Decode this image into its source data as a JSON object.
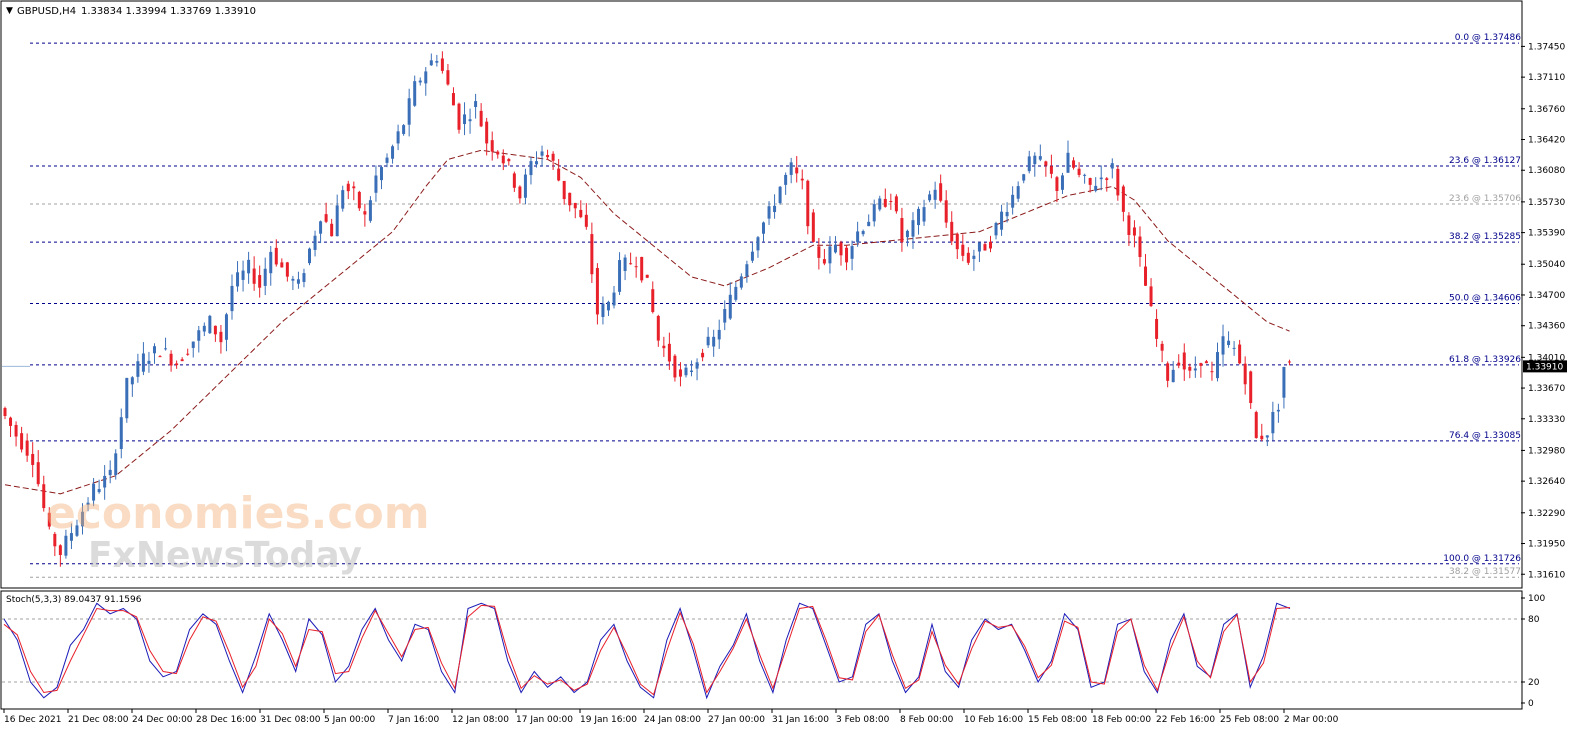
{
  "header": {
    "symbol_label": "GBPUSD,H4",
    "ohlc_text": "1.33834 1.33994 1.33769 1.33910",
    "arrow": "▼"
  },
  "watermark": {
    "line1": "economies.com",
    "line2": "FxNewsToday"
  },
  "colors": {
    "bull": "#3a6fb8",
    "bear": "#e8202a",
    "ma": "#8b1a1a",
    "fib": "#00008b",
    "fib_faint": "#a0a0a0",
    "stoch_main": "#1c1cb8",
    "stoch_signal": "#e8202a",
    "price_tag_bg": "#000000",
    "price_tag_fg": "#ffffff"
  },
  "chart_data": [
    {
      "type": "candlestick",
      "symbol": "GBPUSD",
      "timeframe": "H4",
      "price_axis_ticks": [
        "1.37450",
        "1.37110",
        "1.36760",
        "1.36420",
        "1.36080",
        "1.35730",
        "1.35390",
        "1.35040",
        "1.34700",
        "1.34360",
        "1.34010",
        "1.33670",
        "1.33330",
        "1.32980",
        "1.32640",
        "1.32290",
        "1.31950",
        "1.31610"
      ],
      "ylim": [
        1.3148,
        1.3772
      ],
      "time_axis_labels": [
        "16 Dec 2021",
        "21 Dec 08:00",
        "24 Dec 00:00",
        "28 Dec 16:00",
        "31 Dec 08:00",
        "5 Jan 00:00",
        "7 Jan 16:00",
        "12 Jan 08:00",
        "17 Jan 00:00",
        "19 Jan 16:00",
        "24 Jan 08:00",
        "27 Jan 00:00",
        "31 Jan 16:00",
        "3 Feb 08:00",
        "8 Feb 00:00",
        "10 Feb 16:00",
        "15 Feb 08:00",
        "18 Feb 00:00",
        "22 Feb 16:00",
        "25 Feb 08:00",
        "2 Mar 00:00"
      ],
      "current_price": "1.33910",
      "price_path": [
        [
          0,
          1.3345
        ],
        [
          3,
          1.3315
        ],
        [
          6,
          1.329
        ],
        [
          9,
          1.3205
        ],
        [
          11,
          1.3185
        ],
        [
          14,
          1.322
        ],
        [
          17,
          1.3255
        ],
        [
          20,
          1.327
        ],
        [
          23,
          1.337
        ],
        [
          26,
          1.34
        ],
        [
          29,
          1.341
        ],
        [
          32,
          1.3395
        ],
        [
          35,
          1.342
        ],
        [
          38,
          1.344
        ],
        [
          40,
          1.342
        ],
        [
          42,
          1.348
        ],
        [
          45,
          1.35
        ],
        [
          47,
          1.348
        ],
        [
          49,
          1.352
        ],
        [
          52,
          1.349
        ],
        [
          54,
          1.348
        ],
        [
          56,
          1.352
        ],
        [
          58,
          1.356
        ],
        [
          60,
          1.354
        ],
        [
          62,
          1.359
        ],
        [
          64,
          1.358
        ],
        [
          66,
          1.3555
        ],
        [
          68,
          1.36
        ],
        [
          70,
          1.362
        ],
        [
          73,
          1.366
        ],
        [
          75,
          1.37
        ],
        [
          77,
          1.372
        ],
        [
          79,
          1.3735
        ],
        [
          81,
          1.37
        ],
        [
          83,
          1.366
        ],
        [
          86,
          1.368
        ],
        [
          88,
          1.364
        ],
        [
          90,
          1.363
        ],
        [
          92,
          1.361
        ],
        [
          94,
          1.358
        ],
        [
          96,
          1.3615
        ],
        [
          98,
          1.363
        ],
        [
          100,
          1.3615
        ],
        [
          102,
          1.358
        ],
        [
          104,
          1.3565
        ],
        [
          106,
          1.354
        ],
        [
          108,
          1.345
        ],
        [
          110,
          1.346
        ],
        [
          112,
          1.35
        ],
        [
          115,
          1.351
        ],
        [
          117,
          1.348
        ],
        [
          119,
          1.342
        ],
        [
          121,
          1.34
        ],
        [
          123,
          1.3375
        ],
        [
          125,
          1.339
        ],
        [
          127,
          1.341
        ],
        [
          129,
          1.342
        ],
        [
          131,
          1.345
        ],
        [
          133,
          1.348
        ],
        [
          135,
          1.351
        ],
        [
          137,
          1.354
        ],
        [
          139,
          1.356
        ],
        [
          141,
          1.359
        ],
        [
          143,
          1.361
        ],
        [
          145,
          1.359
        ],
        [
          147,
          1.352
        ],
        [
          149,
          1.351
        ],
        [
          151,
          1.3525
        ],
        [
          153,
          1.3515
        ],
        [
          155,
          1.354
        ],
        [
          157,
          1.3555
        ],
        [
          159,
          1.357
        ],
        [
          161,
          1.358
        ],
        [
          163,
          1.353
        ],
        [
          165,
          1.3545
        ],
        [
          167,
          1.357
        ],
        [
          169,
          1.359
        ],
        [
          171,
          1.355
        ],
        [
          173,
          1.352
        ],
        [
          175,
          1.351
        ],
        [
          177,
          1.352
        ],
        [
          179,
          1.353
        ],
        [
          181,
          1.356
        ],
        [
          183,
          1.358
        ],
        [
          185,
          1.361
        ],
        [
          187,
          1.362
        ],
        [
          189,
          1.361
        ],
        [
          191,
          1.359
        ],
        [
          193,
          1.362
        ],
        [
          195,
          1.36
        ],
        [
          197,
          1.359
        ],
        [
          199,
          1.36
        ],
        [
          201,
          1.361
        ],
        [
          203,
          1.356
        ],
        [
          205,
          1.353
        ],
        [
          207,
          1.348
        ],
        [
          209,
          1.342
        ],
        [
          211,
          1.338
        ],
        [
          213,
          1.34
        ],
        [
          215,
          1.338
        ],
        [
          217,
          1.34
        ],
        [
          219,
          1.338
        ],
        [
          221,
          1.342
        ],
        [
          223,
          1.341
        ],
        [
          225,
          1.338
        ],
        [
          227,
          1.331
        ],
        [
          229,
          1.332
        ],
        [
          231,
          1.335
        ],
        [
          232,
          1.3391
        ]
      ],
      "moving_average_path": [
        [
          0,
          1.326
        ],
        [
          10,
          1.325
        ],
        [
          20,
          1.327
        ],
        [
          30,
          1.332
        ],
        [
          40,
          1.338
        ],
        [
          50,
          1.344
        ],
        [
          60,
          1.349
        ],
        [
          70,
          1.354
        ],
        [
          76,
          1.359
        ],
        [
          80,
          1.362
        ],
        [
          86,
          1.363
        ],
        [
          92,
          1.3625
        ],
        [
          98,
          1.362
        ],
        [
          104,
          1.36
        ],
        [
          110,
          1.356
        ],
        [
          118,
          1.352
        ],
        [
          124,
          1.349
        ],
        [
          130,
          1.348
        ],
        [
          138,
          1.35
        ],
        [
          146,
          1.3525
        ],
        [
          152,
          1.3525
        ],
        [
          160,
          1.353
        ],
        [
          168,
          1.3535
        ],
        [
          176,
          1.354
        ],
        [
          184,
          1.356
        ],
        [
          192,
          1.358
        ],
        [
          200,
          1.359
        ],
        [
          204,
          1.3575
        ],
        [
          210,
          1.353
        ],
        [
          216,
          1.35
        ],
        [
          222,
          1.347
        ],
        [
          228,
          1.344
        ],
        [
          232,
          1.343
        ]
      ]
    },
    {
      "type": "line",
      "indicator_label": "Stoch(5,3,3) 89.0437 91.1596",
      "axis_ticks": [
        "100",
        "80",
        "20",
        "0"
      ],
      "levels": [
        20,
        80
      ],
      "ylim": [
        0,
        100
      ],
      "series": [
        {
          "name": "main",
          "values": [
            80,
            60,
            20,
            5,
            15,
            55,
            70,
            95,
            85,
            90,
            80,
            40,
            25,
            30,
            70,
            85,
            75,
            40,
            10,
            45,
            85,
            60,
            30,
            80,
            65,
            20,
            35,
            70,
            90,
            60,
            40,
            75,
            70,
            30,
            10,
            90,
            95,
            90,
            40,
            10,
            30,
            15,
            25,
            10,
            20,
            60,
            75,
            40,
            15,
            5,
            60,
            90,
            50,
            5,
            35,
            55,
            85,
            40,
            10,
            60,
            95,
            90,
            55,
            20,
            25,
            75,
            85,
            40,
            10,
            25,
            75,
            30,
            15,
            60,
            80,
            70,
            75,
            50,
            20,
            40,
            85,
            70,
            15,
            20,
            75,
            80,
            30,
            10,
            60,
            85,
            35,
            25,
            75,
            85,
            15,
            45,
            95,
            90
          ]
        },
        {
          "name": "signal",
          "values": [
            75,
            65,
            30,
            10,
            12,
            40,
            65,
            90,
            88,
            88,
            82,
            50,
            30,
            28,
            60,
            82,
            78,
            48,
            15,
            35,
            80,
            66,
            35,
            70,
            68,
            28,
            30,
            62,
            88,
            66,
            44,
            70,
            72,
            38,
            14,
            82,
            93,
            92,
            48,
            14,
            26,
            18,
            22,
            12,
            18,
            50,
            72,
            46,
            18,
            8,
            50,
            86,
            56,
            10,
            30,
            52,
            80,
            46,
            14,
            52,
            90,
            92,
            60,
            24,
            22,
            68,
            84,
            46,
            14,
            22,
            68,
            36,
            18,
            52,
            78,
            72,
            74,
            54,
            24,
            36,
            78,
            72,
            20,
            18,
            68,
            80,
            36,
            12,
            52,
            82,
            40,
            24,
            68,
            84,
            20,
            38,
            90,
            91
          ]
        }
      ]
    }
  ],
  "fib_levels": [
    {
      "label": "0.0 @ 1.37486",
      "price": 1.37486,
      "style": "main"
    },
    {
      "label": "23.6 @ 1.36127",
      "price": 1.36127,
      "style": "main"
    },
    {
      "label": "23.6 @ 1.35706",
      "price": 1.35706,
      "style": "faint"
    },
    {
      "label": "38.2 @ 1.35285",
      "price": 1.35285,
      "style": "main"
    },
    {
      "label": "50.0 @ 1.34606",
      "price": 1.34606,
      "style": "main"
    },
    {
      "label": "61.8 @ 1.33926",
      "price": 1.33926,
      "style": "main"
    },
    {
      "label": "76.4 @ 1.33085",
      "price": 1.33085,
      "style": "main"
    },
    {
      "label": "100.0 @ 1.31726",
      "price": 1.31726,
      "style": "main"
    },
    {
      "label": "38.2 @ 1.31577",
      "price": 1.31577,
      "style": "faint"
    }
  ]
}
